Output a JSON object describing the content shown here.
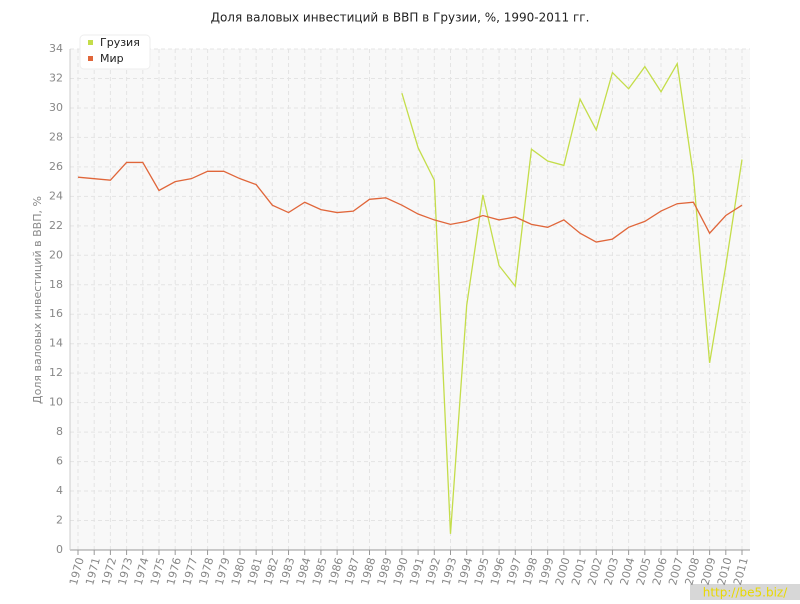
{
  "chart_data": {
    "type": "line",
    "title": "Доля валовых инвестиций в ВВП в Грузии, %, 1990-2011 гг.",
    "y_label": "Доля валовых инвестиций в ВВП, %",
    "categories": [
      "1970",
      "1971",
      "1972",
      "1973",
      "1974",
      "1975",
      "1976",
      "1977",
      "1978",
      "1979",
      "1980",
      "1981",
      "1982",
      "1983",
      "1984",
      "1985",
      "1986",
      "1987",
      "1988",
      "1989",
      "1990",
      "1991",
      "1992",
      "1993",
      "1994",
      "1995",
      "1996",
      "1997",
      "1998",
      "1999",
      "2000",
      "2001",
      "2002",
      "2003",
      "2004",
      "2005",
      "2006",
      "2007",
      "2008",
      "2009",
      "2010",
      "2011"
    ],
    "series": [
      {
        "name": "Грузия",
        "color": "#c4dd4a",
        "values": [
          null,
          null,
          null,
          null,
          null,
          null,
          null,
          null,
          null,
          null,
          null,
          null,
          null,
          null,
          null,
          null,
          null,
          null,
          null,
          null,
          31.0,
          27.3,
          25.1,
          1.1,
          16.6,
          24.1,
          19.3,
          17.9,
          27.2,
          26.4,
          26.1,
          30.6,
          28.5,
          32.4,
          31.3,
          32.8,
          31.1,
          33.0,
          25.4,
          12.7,
          19.3,
          26.5
        ]
      },
      {
        "name": "Мир",
        "color": "#e0663a",
        "values": [
          25.3,
          25.2,
          25.1,
          26.3,
          26.3,
          24.4,
          25.0,
          25.2,
          25.7,
          25.7,
          25.2,
          24.8,
          23.4,
          22.9,
          23.6,
          23.1,
          22.9,
          23.0,
          23.8,
          23.9,
          23.4,
          22.8,
          22.4,
          22.1,
          22.3,
          22.7,
          22.4,
          22.6,
          22.1,
          21.9,
          22.4,
          21.5,
          20.9,
          21.1,
          21.9,
          22.3,
          23.0,
          23.5,
          23.6,
          21.5,
          22.7,
          23.4
        ]
      }
    ],
    "ylim": [
      0,
      34
    ],
    "yticks": [
      0,
      2,
      4,
      6,
      8,
      10,
      12,
      14,
      16,
      18,
      20,
      22,
      24,
      26,
      28,
      30,
      32,
      34
    ],
    "grid": true,
    "legend": "top-left",
    "watermark": "http://be5.biz/"
  }
}
